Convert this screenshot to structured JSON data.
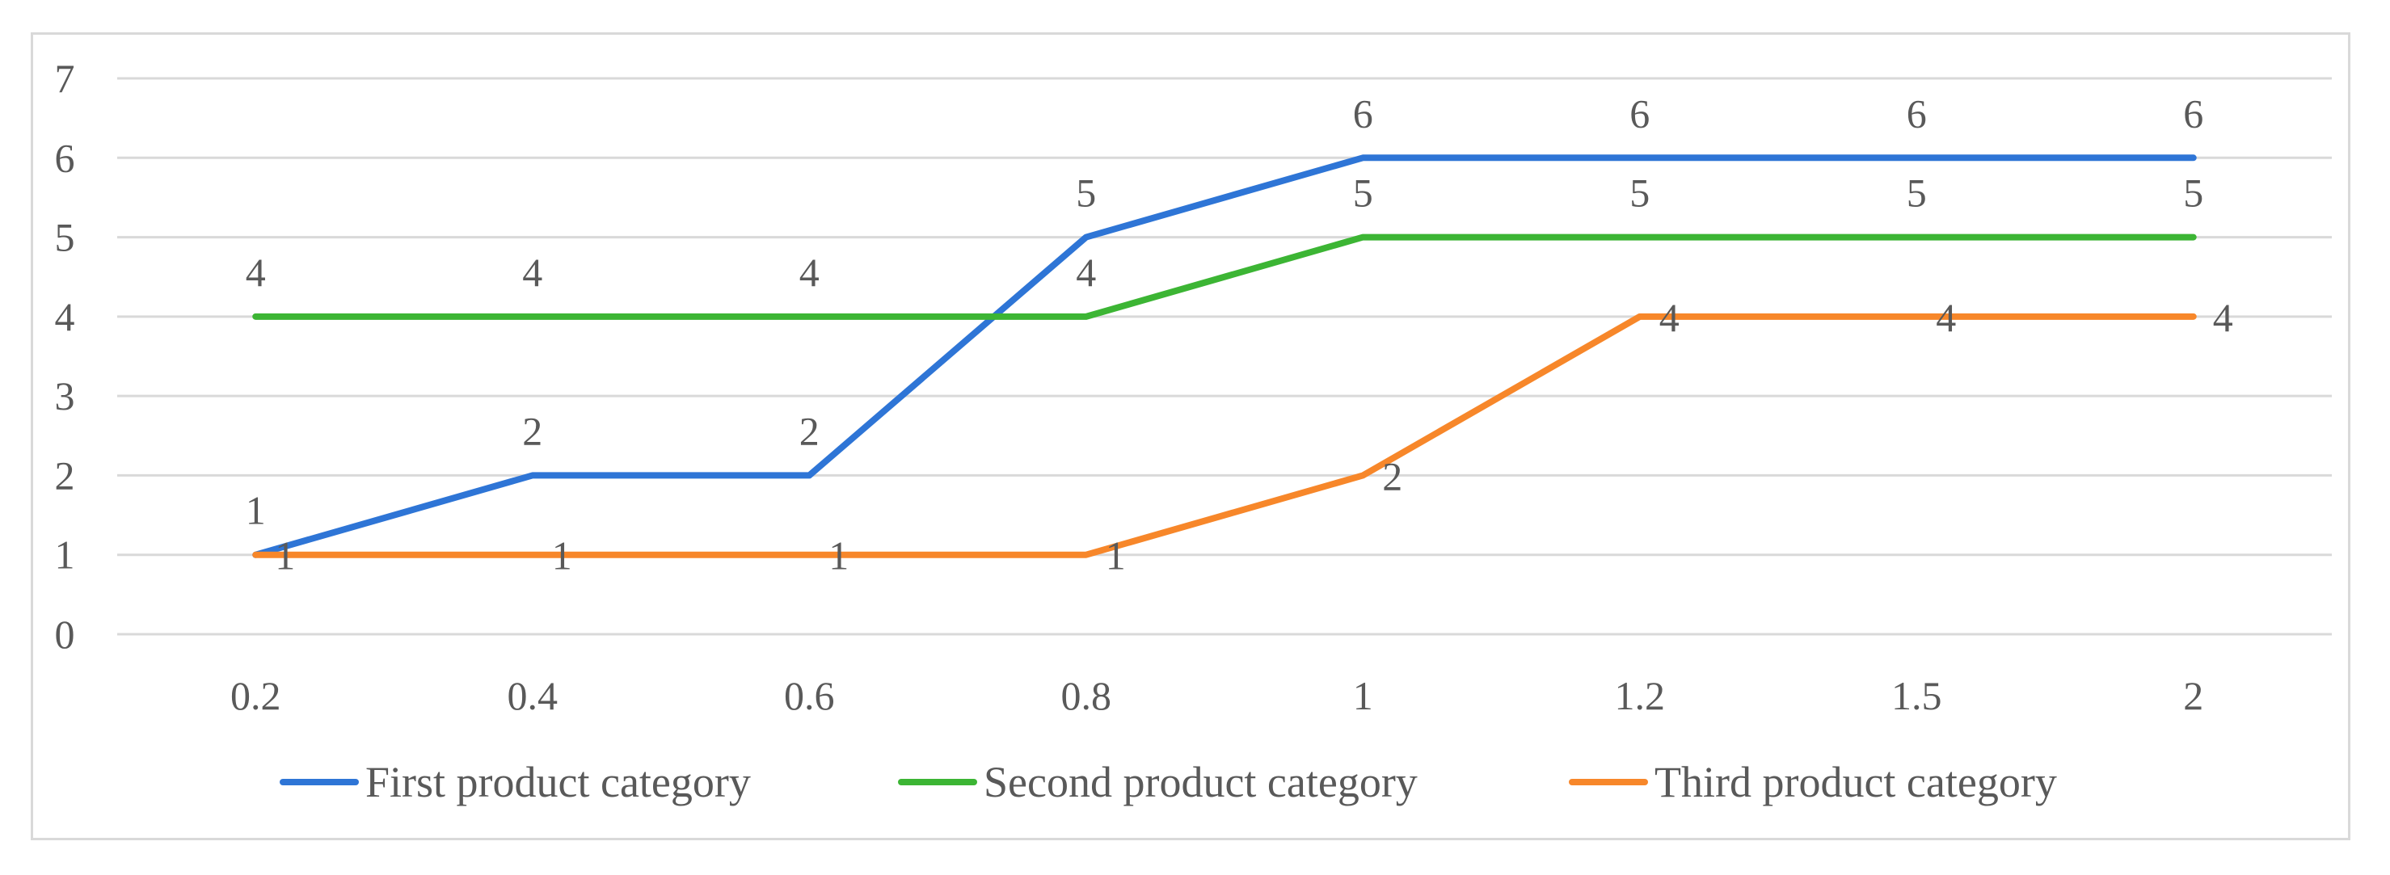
{
  "chart_data": {
    "type": "line",
    "title": "",
    "xlabel": "",
    "ylabel": "",
    "categories": [
      "0.2",
      "0.4",
      "0.6",
      "0.8",
      "1",
      "1.2",
      "1.5",
      "2"
    ],
    "ylim": [
      0,
      7
    ],
    "yticks": [
      "0",
      "1",
      "2",
      "3",
      "4",
      "5",
      "6",
      "7"
    ],
    "grid": true,
    "legend_position": "bottom",
    "data_labels": true,
    "series": [
      {
        "name": "First product category",
        "color": "#2e75d6",
        "values": [
          1,
          2,
          2,
          5,
          6,
          6,
          6,
          6
        ]
      },
      {
        "name": "Second product category",
        "color": "#3cb534",
        "values": [
          4,
          4,
          4,
          4,
          5,
          5,
          5,
          5
        ]
      },
      {
        "name": "Third product category",
        "color": "#f7872a",
        "values": [
          1,
          1,
          1,
          1,
          2,
          4,
          4,
          4
        ]
      }
    ]
  }
}
